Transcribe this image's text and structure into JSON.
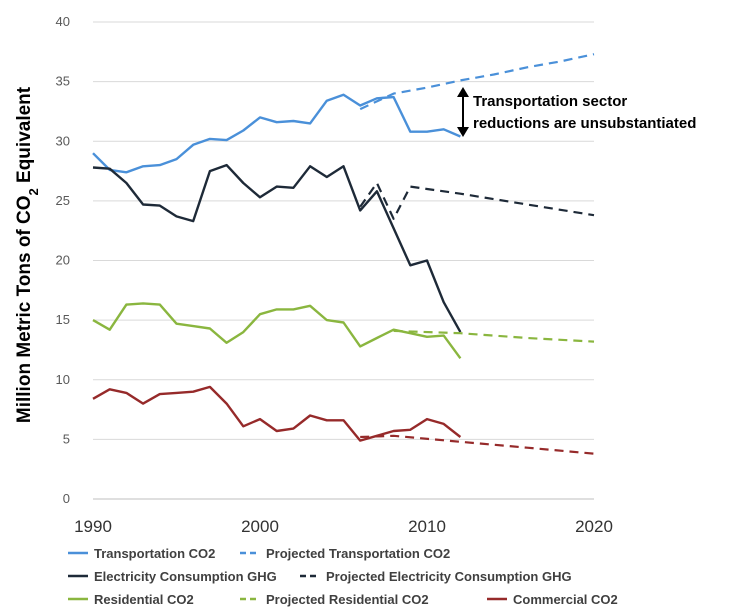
{
  "chart_data": {
    "type": "line",
    "ylabel_main": "Million Metric Tons of CO",
    "ylabel_sub": "2",
    "ylabel_end": " Equivalent",
    "ylim": [
      0,
      40
    ],
    "xlim": [
      1990,
      2020
    ],
    "y_ticks": [
      "0",
      "5",
      "10",
      "15",
      "20",
      "25",
      "30",
      "35",
      "40"
    ],
    "x_ticks": [
      "1990",
      "2000",
      "2010",
      "2020"
    ],
    "grid": "horizontal",
    "legend_position": "bottom",
    "annotation": {
      "line1": "Transportation sector",
      "line2": "reductions are unsubstantiated"
    },
    "series": [
      {
        "name": "Transportation CO2",
        "color": "#4a90d9",
        "dash": false,
        "x": [
          1990,
          1991,
          1992,
          1993,
          1994,
          1995,
          1996,
          1997,
          1998,
          1999,
          2000,
          2001,
          2002,
          2003,
          2004,
          2005,
          2006,
          2007,
          2008,
          2009,
          2010,
          2011,
          2012
        ],
        "y": [
          29.0,
          27.6,
          27.4,
          27.9,
          28.0,
          28.5,
          29.7,
          30.2,
          30.1,
          30.9,
          32.0,
          31.6,
          31.7,
          31.5,
          33.4,
          33.9,
          33.0,
          33.6,
          33.7,
          30.8,
          30.8,
          31.0,
          30.4
        ]
      },
      {
        "name": "Projected Transportation CO2",
        "color": "#4a90d9",
        "dash": true,
        "x": [
          2006,
          2008,
          2010,
          2012,
          2014,
          2016,
          2018,
          2020
        ],
        "y": [
          32.7,
          34.0,
          34.5,
          35.1,
          35.6,
          36.2,
          36.7,
          37.3
        ]
      },
      {
        "name": "Electricity Consumption GHG",
        "color": "#1e2a38",
        "dash": false,
        "x": [
          1990,
          1991,
          1992,
          1993,
          1994,
          1995,
          1996,
          1997,
          1998,
          1999,
          2000,
          2001,
          2002,
          2003,
          2004,
          2005,
          2006,
          2007,
          2008,
          2009,
          2010,
          2011,
          2012
        ],
        "y": [
          27.8,
          27.7,
          26.5,
          24.7,
          24.6,
          23.7,
          23.3,
          27.5,
          28.0,
          26.5,
          25.3,
          26.2,
          26.1,
          27.9,
          27.0,
          27.9,
          24.2,
          25.8,
          22.7,
          19.6,
          20.0,
          16.5,
          14.0
        ]
      },
      {
        "name": "Projected Electricity Consumption GHG",
        "color": "#1e2a38",
        "dash": true,
        "x": [
          2006,
          2007,
          2008,
          2009,
          2012,
          2016,
          2020
        ],
        "y": [
          24.5,
          26.5,
          23.5,
          26.2,
          25.6,
          24.7,
          23.8
        ]
      },
      {
        "name": "Residential CO2",
        "color": "#8ab63f",
        "dash": false,
        "x": [
          1990,
          1991,
          1992,
          1993,
          1994,
          1995,
          1996,
          1997,
          1998,
          1999,
          2000,
          2001,
          2002,
          2003,
          2004,
          2005,
          2006,
          2007,
          2008,
          2009,
          2010,
          2011,
          2012
        ],
        "y": [
          15.0,
          14.2,
          16.3,
          16.4,
          16.3,
          14.7,
          14.5,
          14.3,
          13.1,
          14.0,
          15.5,
          15.9,
          15.9,
          16.2,
          15.0,
          14.8,
          12.8,
          13.5,
          14.2,
          13.9,
          13.6,
          13.7,
          11.8
        ]
      },
      {
        "name": "Projected Residential CO2",
        "color": "#8ab63f",
        "dash": true,
        "x": [
          2008,
          2012,
          2016,
          2020
        ],
        "y": [
          14.1,
          13.9,
          13.5,
          13.2
        ]
      },
      {
        "name": "Commercial CO2",
        "color": "#962a2a",
        "dash": false,
        "x": [
          1990,
          1991,
          1992,
          1993,
          1994,
          1995,
          1996,
          1997,
          1998,
          1999,
          2000,
          2001,
          2002,
          2003,
          2004,
          2005,
          2006,
          2007,
          2008,
          2009,
          2010,
          2011,
          2012
        ],
        "y": [
          8.4,
          9.2,
          8.9,
          8.0,
          8.8,
          8.9,
          9.0,
          9.4,
          8.0,
          6.1,
          6.7,
          5.7,
          5.9,
          7.0,
          6.6,
          6.6,
          4.9,
          5.3,
          5.7,
          5.8,
          6.7,
          6.3,
          5.2
        ]
      },
      {
        "name": "",
        "color": "#962a2a",
        "dash": true,
        "x": [
          2006,
          2008,
          2012,
          2016,
          2020
        ],
        "y": [
          5.2,
          5.3,
          4.8,
          4.3,
          3.8
        ]
      }
    ],
    "legend": [
      [
        "Transportation CO2",
        "Projected Transportation CO2"
      ],
      [
        "Electricity Consumption GHG",
        "Projected Electricity Consumption GHG"
      ],
      [
        "Residential CO2",
        "Projected Residential CO2",
        "Commercial CO2"
      ]
    ]
  }
}
